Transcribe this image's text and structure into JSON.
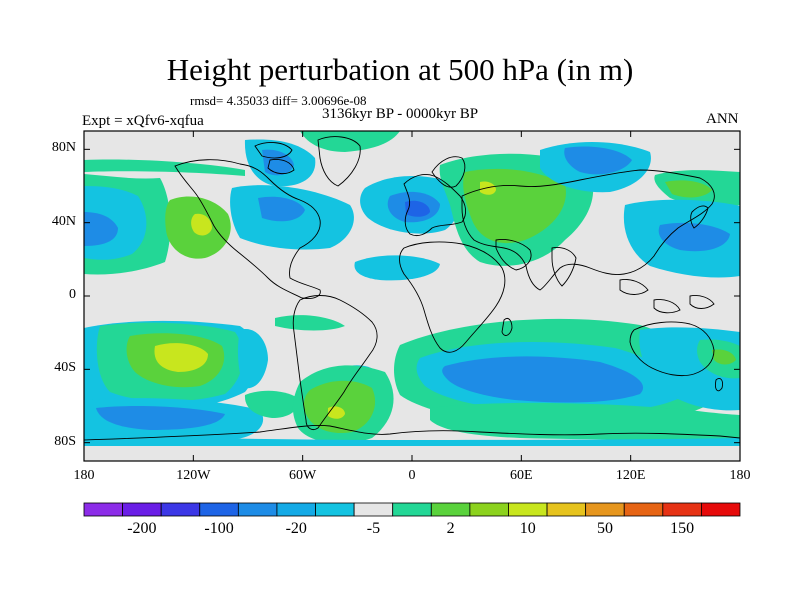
{
  "map": {
    "title": "Height perturbation at 500 hPa (in m)",
    "stats": "rmsd= 4.35033 diff= 3.00696e-08",
    "left_label": "Expt = xQfv6-xqfua",
    "center_label": "3136kyr BP - 0000kyr BP",
    "right_label": "ANN",
    "projection": "cylindrical equidistant",
    "extent": {
      "lon": [
        -180,
        180
      ],
      "lat": [
        -90,
        90
      ]
    },
    "lat_ticks": [
      {
        "value": 80,
        "label": "80N"
      },
      {
        "value": 40,
        "label": "40N"
      },
      {
        "value": 0,
        "label": "0"
      },
      {
        "value": -40,
        "label": "40S"
      },
      {
        "value": -80,
        "label": "80S"
      }
    ],
    "lon_ticks": [
      {
        "value": -180,
        "label": "180"
      },
      {
        "value": -120,
        "label": "120W"
      },
      {
        "value": -60,
        "label": "60W"
      },
      {
        "value": 0,
        "label": "0"
      },
      {
        "value": 60,
        "label": "60E"
      },
      {
        "value": 120,
        "label": "120E"
      },
      {
        "value": 180,
        "label": "180"
      }
    ],
    "background_color": "#e6e6e6",
    "coastline_color": "#000000"
  },
  "colorbar": {
    "colors": [
      "#8c2ce8",
      "#6a1ee6",
      "#3c37e6",
      "#1e64e6",
      "#1e8ce6",
      "#14aae6",
      "#14c3e1",
      "#e6e6e6",
      "#23d796",
      "#5ad23c",
      "#8cd21e",
      "#c8e61e",
      "#e6c31e",
      "#e6961e",
      "#e66414",
      "#e63214",
      "#e60a0a"
    ],
    "labels": [
      "-200",
      "-100",
      "-20",
      "-5",
      "2",
      "10",
      "50",
      "150"
    ]
  },
  "features": [
    {
      "id": "ne-pacific-positive",
      "sign": "positive",
      "peak": 20,
      "center_lon": -123,
      "center_lat": 42
    },
    {
      "id": "south-pacific-positive",
      "sign": "positive",
      "peak": 20,
      "center_lon": -118,
      "center_lat": -33
    },
    {
      "id": "south-atlantic-positive",
      "sign": "positive",
      "peak": 20,
      "center_lon": -45,
      "center_lat": -57
    },
    {
      "id": "eurasia-positive",
      "sign": "positive",
      "peak": 20,
      "center_lon": 40,
      "center_lat": 50
    },
    {
      "id": "north-atlantic-negative",
      "sign": "negative",
      "peak": -20,
      "center_lon": 5,
      "center_lat": 42
    },
    {
      "id": "nw-pacific-negative",
      "sign": "negative",
      "peak": -20,
      "center_lon": 162,
      "center_lat": 35
    },
    {
      "id": "southern-indian-negative",
      "sign": "negative",
      "peak": -20,
      "center_lon": 60,
      "center_lat": -45
    }
  ]
}
